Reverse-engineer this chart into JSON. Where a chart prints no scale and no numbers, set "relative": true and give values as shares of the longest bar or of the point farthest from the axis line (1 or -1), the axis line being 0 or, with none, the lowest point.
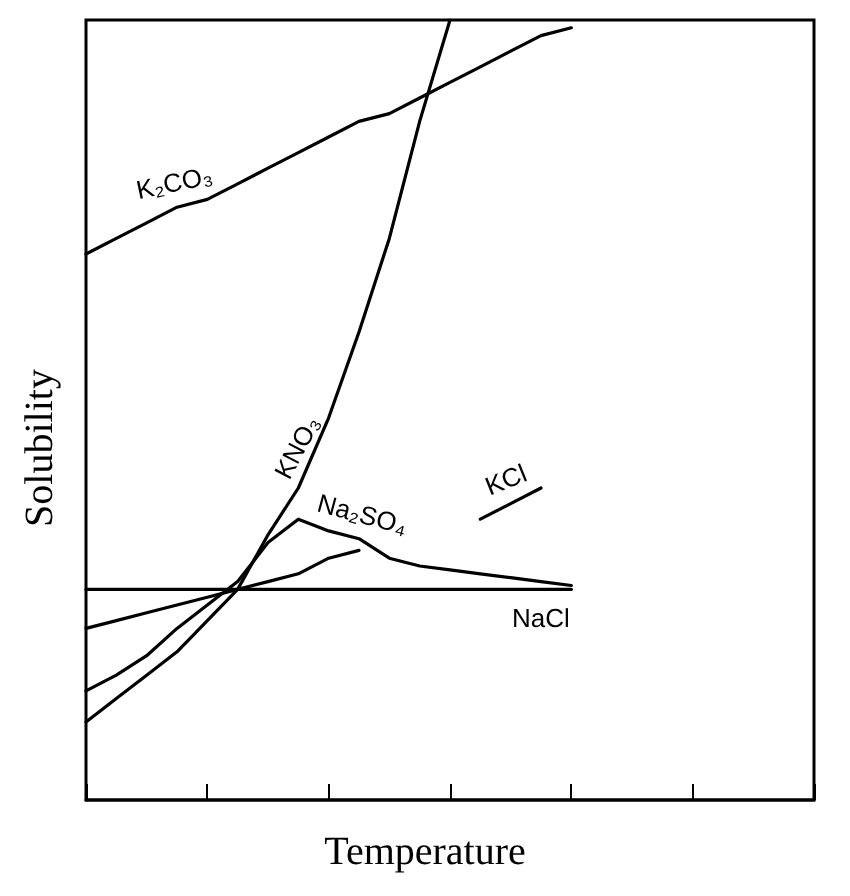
{
  "chart_data": {
    "type": "line",
    "relative": true,
    "xlabel": "Temperature",
    "ylabel": "Solubility",
    "marker": "none",
    "line_style": "solid",
    "categories": [
      null,
      null,
      null,
      null,
      null,
      null,
      null,
      null,
      null,
      null,
      null,
      null,
      null,
      null,
      null,
      null,
      null,
      null,
      null,
      null,
      null,
      null,
      null,
      null,
      null
    ],
    "series": [
      {
        "name": "K₂CO₃",
        "color": "#000000",
        "values": [
          0.7,
          0.72,
          0.74,
          0.76,
          0.77,
          0.79,
          0.81,
          0.83,
          0.85,
          0.87,
          0.88,
          0.9,
          0.92,
          0.94,
          0.96,
          0.98,
          0.99,
          null,
          null,
          null,
          null,
          null,
          null,
          null,
          null
        ]
      },
      {
        "name": "KNO₃",
        "color": "#000000",
        "values": [
          0.1,
          0.13,
          0.16,
          0.19,
          0.23,
          0.27,
          0.34,
          0.4,
          0.49,
          0.6,
          0.72,
          0.87,
          1.0,
          null,
          null,
          null,
          null,
          null,
          null,
          null,
          null,
          null,
          null,
          null,
          null
        ]
      },
      {
        "name": "Na₂SO₄",
        "color": "#000000",
        "values": [
          0.14,
          0.16,
          0.185,
          0.22,
          0.25,
          0.28,
          0.33,
          0.36,
          0.345,
          0.335,
          0.31,
          0.3,
          0.295,
          0.29,
          0.285,
          0.28,
          0.275,
          null,
          null,
          null,
          null,
          null,
          null,
          null,
          null
        ]
      },
      {
        "name": "KCl",
        "color": "#000000",
        "values": [
          0.22,
          0.23,
          0.24,
          0.25,
          0.26,
          0.27,
          0.28,
          0.29,
          0.31,
          0.32,
          null,
          null,
          null,
          0.36,
          0.38,
          0.4,
          null,
          null,
          null,
          null,
          null,
          null,
          null,
          null,
          null
        ]
      },
      {
        "name": "NaCl",
        "color": "#000000",
        "values": [
          0.27,
          0.27,
          0.27,
          0.27,
          0.27,
          0.27,
          0.27,
          0.27,
          0.27,
          0.27,
          0.27,
          0.27,
          0.27,
          0.27,
          0.27,
          0.27,
          0.27,
          null,
          null,
          null,
          null,
          null,
          null,
          null,
          null
        ]
      }
    ]
  }
}
